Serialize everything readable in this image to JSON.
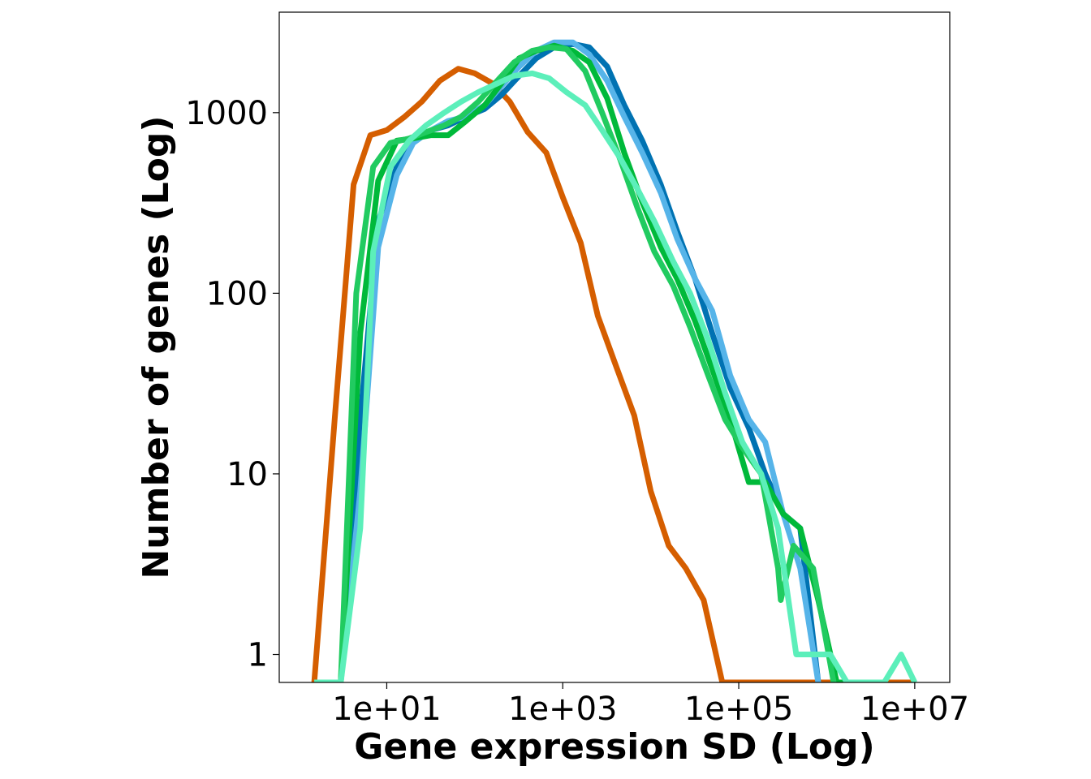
{
  "chart_data": {
    "type": "line",
    "xlabel": "Gene expression SD (Log)",
    "ylabel": "Number of genes (Log)",
    "xscale": "log",
    "yscale": "log",
    "xlim": [
      0.6,
      25000000
    ],
    "ylim": [
      0.7,
      3600
    ],
    "grid": false,
    "legend": "none",
    "x_ticks": [
      {
        "value": 10,
        "label": "1e+01"
      },
      {
        "value": 1000,
        "label": "1e+03"
      },
      {
        "value": 100000,
        "label": "1e+05"
      },
      {
        "value": 10000000,
        "label": "1e+07"
      }
    ],
    "y_ticks": [
      {
        "value": 1,
        "label": "1"
      },
      {
        "value": 10,
        "label": "10"
      },
      {
        "value": 100,
        "label": "100"
      },
      {
        "value": 1000,
        "label": "1000"
      }
    ],
    "series": [
      {
        "color": "#D55E00",
        "x": [
          1.5,
          2.6,
          4.2,
          6.5,
          10,
          16,
          25,
          40,
          65,
          100,
          160,
          250,
          400,
          650,
          1000,
          1600,
          2500,
          4000,
          6500,
          10000,
          16000,
          25000,
          40000,
          65000,
          100000,
          160000,
          250000,
          400000,
          650000,
          1000000,
          1600000,
          2500000,
          4000000,
          6500000,
          10000000
        ],
        "y": [
          0.7,
          22,
          400,
          750,
          800,
          950,
          1150,
          1500,
          1750,
          1650,
          1450,
          1150,
          780,
          600,
          340,
          190,
          75,
          40,
          21,
          8,
          4,
          3,
          2,
          0.7,
          0.7,
          0.7,
          0.7,
          0.7,
          0.7,
          0.7,
          0.7,
          0.7,
          0.7,
          0.7,
          0.7
        ]
      },
      {
        "color": "#0072B2",
        "x": [
          1.8,
          3,
          5,
          8,
          13,
          20,
          32,
          50,
          80,
          130,
          200,
          320,
          500,
          800,
          1300,
          2000,
          3200,
          5000,
          8000,
          13000,
          20000,
          32000,
          50000,
          80000,
          130000,
          200000,
          320000,
          500000,
          800000
        ],
        "y": [
          0.7,
          0.7,
          20,
          250,
          500,
          700,
          800,
          850,
          950,
          1050,
          1250,
          1600,
          2000,
          2300,
          2400,
          2300,
          1800,
          1100,
          700,
          400,
          220,
          120,
          60,
          30,
          18,
          10,
          6,
          5,
          0.7
        ]
      },
      {
        "color": "#56B4E9",
        "x": [
          1.8,
          3,
          5,
          8,
          13,
          20,
          32,
          50,
          80,
          130,
          200,
          320,
          500,
          800,
          1300,
          2000,
          3200,
          5000,
          8000,
          13000,
          20000,
          32000,
          50000,
          80000,
          130000,
          200000,
          320000,
          500000,
          800000
        ],
        "y": [
          0.7,
          0.7,
          8,
          180,
          450,
          680,
          800,
          900,
          950,
          1100,
          1400,
          1800,
          2200,
          2450,
          2450,
          2100,
          1500,
          950,
          600,
          360,
          200,
          120,
          80,
          35,
          20,
          15,
          6,
          3,
          0.7
        ]
      },
      {
        "color": "#00B93A",
        "x": [
          1.8,
          3,
          5,
          8,
          13,
          20,
          32,
          50,
          80,
          130,
          200,
          320,
          500,
          800,
          1300,
          2000,
          3200,
          5000,
          8000,
          13000,
          20000,
          32000,
          50000,
          80000,
          130000,
          200000,
          320000,
          500000,
          800000,
          1300000,
          1900000
        ],
        "y": [
          0.7,
          0.7,
          60,
          420,
          700,
          720,
          750,
          750,
          900,
          1100,
          1450,
          2000,
          2200,
          2350,
          2200,
          1900,
          1200,
          600,
          320,
          180,
          120,
          70,
          38,
          20,
          9,
          9,
          6,
          5,
          2,
          0.7,
          0.7
        ]
      },
      {
        "color": "#21CB60",
        "x": [
          1.8,
          3,
          4.5,
          7,
          11,
          18,
          28,
          45,
          70,
          110,
          180,
          280,
          450,
          700,
          1100,
          1800,
          2800,
          4500,
          7000,
          11000,
          18000,
          28000,
          45000,
          70000,
          110000,
          180000,
          280000,
          300000,
          420000,
          700000,
          1200000
        ],
        "y": [
          0.7,
          0.7,
          100,
          500,
          680,
          720,
          780,
          850,
          950,
          1150,
          1500,
          1900,
          2200,
          2300,
          2250,
          1700,
          1000,
          550,
          300,
          170,
          110,
          65,
          35,
          20,
          14,
          10,
          3,
          2,
          4,
          3,
          0.7
        ]
      },
      {
        "color": "#5CEFBA",
        "x": [
          1.5,
          3,
          5,
          7,
          11,
          18,
          28,
          45,
          70,
          110,
          180,
          280,
          450,
          700,
          1100,
          1800,
          2800,
          4500,
          7000,
          11000,
          18000,
          28000,
          45000,
          70000,
          110000,
          180000,
          280000,
          450000,
          700000,
          1100000,
          1700000,
          2800000,
          4500000,
          7000000,
          10000000
        ],
        "y": [
          0.7,
          0.7,
          5,
          170,
          500,
          700,
          850,
          1000,
          1150,
          1300,
          1450,
          1600,
          1650,
          1550,
          1300,
          1100,
          800,
          560,
          380,
          250,
          150,
          100,
          55,
          28,
          15,
          10,
          5,
          1,
          1,
          1,
          0.7,
          0.7,
          0.7,
          1,
          0.7
        ]
      }
    ]
  }
}
